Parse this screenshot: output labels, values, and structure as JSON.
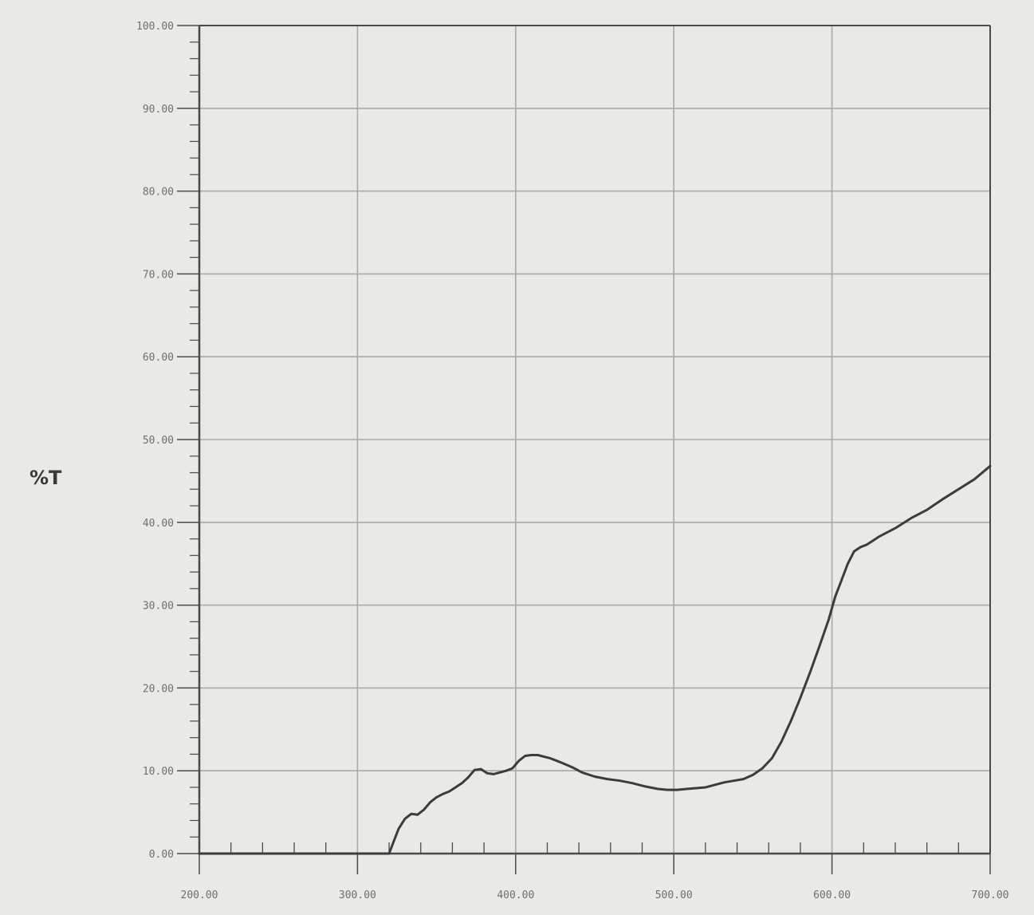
{
  "chart_data": {
    "type": "line",
    "title": "",
    "xlabel": "",
    "ylabel": "%T",
    "xlim": [
      200,
      700
    ],
    "ylim": [
      0,
      100
    ],
    "grid": true,
    "x_ticks": [
      200,
      300,
      400,
      500,
      600,
      700
    ],
    "x_tick_labels": [
      "200.00",
      "300.00",
      "400.00",
      "500.00",
      "600.00",
      "700.00"
    ],
    "y_ticks": [
      0,
      10,
      20,
      30,
      40,
      50,
      60,
      70,
      80,
      90,
      100
    ],
    "y_tick_labels": [
      "0.00",
      "10.00",
      "20.00",
      "30.00",
      "40.00",
      "50.00",
      "60.00",
      "70.00",
      "80.00",
      "90.00",
      "100.00"
    ],
    "colors": {
      "line": "#3c3c3c",
      "grid": "#a9a9a9",
      "axis": "#4a4a4a",
      "background": "#e9e9e6"
    },
    "series": [
      {
        "x": [
          320,
          323,
          326,
          330,
          334,
          338,
          342,
          346,
          350,
          354,
          358,
          362,
          366,
          370,
          374,
          378,
          382,
          386,
          390,
          394,
          398,
          402,
          406,
          410,
          414,
          418,
          422,
          426,
          430,
          436,
          442,
          450,
          458,
          466,
          474,
          482,
          490,
          496,
          502,
          508,
          514,
          520,
          526,
          532,
          538,
          544,
          550,
          556,
          562,
          568,
          574,
          580,
          586,
          592,
          598,
          602,
          606,
          610,
          614,
          618,
          622,
          626,
          630,
          640,
          650,
          660,
          670,
          680,
          690,
          700
        ],
        "y": [
          0.0,
          1.5,
          3.0,
          4.2,
          4.8,
          4.7,
          5.3,
          6.2,
          6.8,
          7.2,
          7.5,
          8.0,
          8.5,
          9.2,
          10.1,
          10.2,
          9.7,
          9.6,
          9.8,
          10.0,
          10.3,
          11.2,
          11.8,
          11.9,
          11.9,
          11.7,
          11.5,
          11.2,
          10.9,
          10.4,
          9.8,
          9.3,
          9.0,
          8.8,
          8.5,
          8.1,
          7.8,
          7.7,
          7.7,
          7.8,
          7.9,
          8.0,
          8.3,
          8.6,
          8.8,
          9.0,
          9.5,
          10.3,
          11.5,
          13.5,
          16.0,
          18.8,
          21.8,
          25.0,
          28.3,
          31.0,
          33.0,
          35.0,
          36.5,
          37.0,
          37.3,
          37.8,
          38.3,
          39.3,
          40.5,
          41.5,
          42.8,
          44.0,
          45.2,
          46.8
        ]
      }
    ]
  }
}
